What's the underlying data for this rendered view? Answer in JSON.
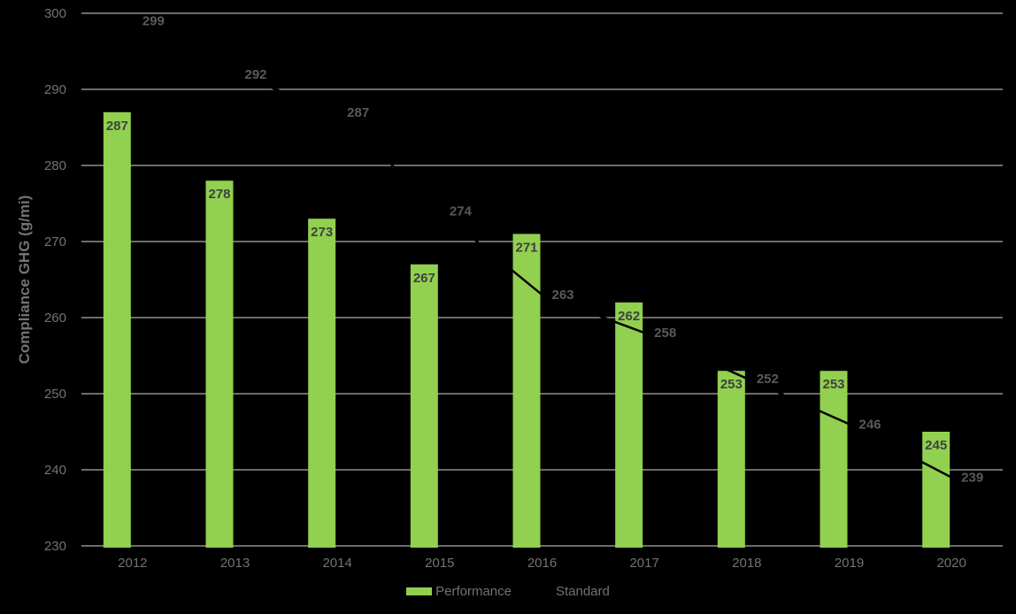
{
  "chart_data": {
    "type": "bar",
    "subtype": "bar-line-combo",
    "categories": [
      "2012",
      "2013",
      "2014",
      "2015",
      "2016",
      "2017",
      "2018",
      "2019",
      "2020"
    ],
    "series": [
      {
        "name": "Performance",
        "render": "bar",
        "color": "#92d050",
        "label_color": "#404040",
        "values": [
          287,
          278,
          273,
          267,
          271,
          262,
          253,
          253,
          245
        ]
      },
      {
        "name": "Standard",
        "render": "line",
        "color": "#000000",
        "label_color": "#595959",
        "values": [
          299,
          292,
          287,
          274,
          263,
          258,
          252,
          246,
          239
        ]
      }
    ],
    "title": "",
    "xlabel": "",
    "ylabel": "Compliance GHG (g/mi)",
    "ylim": [
      230,
      300
    ],
    "ytick_step": 10,
    "yticks": [
      230,
      240,
      250,
      260,
      270,
      280,
      290,
      300
    ],
    "grid": "horizontal",
    "legend_position": "bottom",
    "colors": {
      "background": "#000000",
      "gridline": "#d9d9d9",
      "axis_line": "#d9d9d9",
      "tick_label": "#757171",
      "axis_title": "#757171",
      "legend_text": "#757171"
    }
  }
}
